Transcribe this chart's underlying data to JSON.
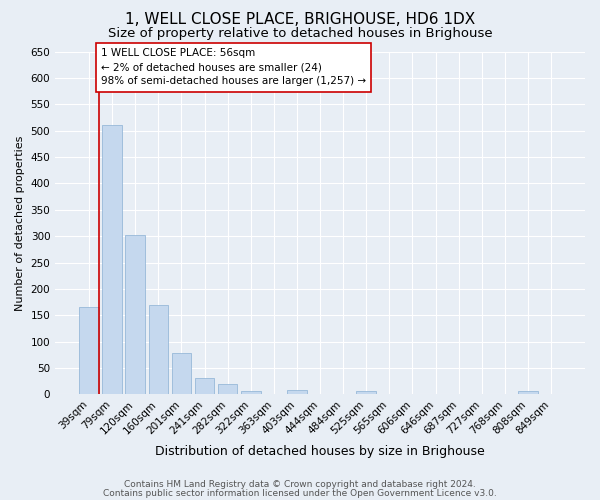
{
  "title": "1, WELL CLOSE PLACE, BRIGHOUSE, HD6 1DX",
  "subtitle": "Size of property relative to detached houses in Brighouse",
  "xlabel": "Distribution of detached houses by size in Brighouse",
  "ylabel": "Number of detached properties",
  "categories": [
    "39sqm",
    "79sqm",
    "120sqm",
    "160sqm",
    "201sqm",
    "241sqm",
    "282sqm",
    "322sqm",
    "363sqm",
    "403sqm",
    "444sqm",
    "484sqm",
    "525sqm",
    "565sqm",
    "606sqm",
    "646sqm",
    "687sqm",
    "727sqm",
    "768sqm",
    "808sqm",
    "849sqm"
  ],
  "values": [
    165,
    510,
    303,
    170,
    78,
    31,
    20,
    7,
    0,
    8,
    0,
    0,
    7,
    0,
    0,
    0,
    0,
    0,
    0,
    7,
    0
  ],
  "bar_color": "#c5d8ee",
  "bar_edgecolor": "#8ab0d4",
  "annotation_line1": "1 WELL CLOSE PLACE: 56sqm",
  "annotation_line2": "← 2% of detached houses are smaller (24)",
  "annotation_line3": "98% of semi-detached houses are larger (1,257) →",
  "annotation_box_facecolor": "#ffffff",
  "annotation_box_edgecolor": "#cc0000",
  "vline_color": "#cc0000",
  "ylim": [
    0,
    650
  ],
  "yticks": [
    0,
    50,
    100,
    150,
    200,
    250,
    300,
    350,
    400,
    450,
    500,
    550,
    600,
    650
  ],
  "background_color": "#e8eef5",
  "grid_color": "#ffffff",
  "footer1": "Contains HM Land Registry data © Crown copyright and database right 2024.",
  "footer2": "Contains public sector information licensed under the Open Government Licence v3.0.",
  "title_fontsize": 11,
  "subtitle_fontsize": 9.5,
  "xlabel_fontsize": 9,
  "ylabel_fontsize": 8,
  "tick_fontsize": 7.5,
  "annotation_fontsize": 7.5,
  "footer_fontsize": 6.5
}
